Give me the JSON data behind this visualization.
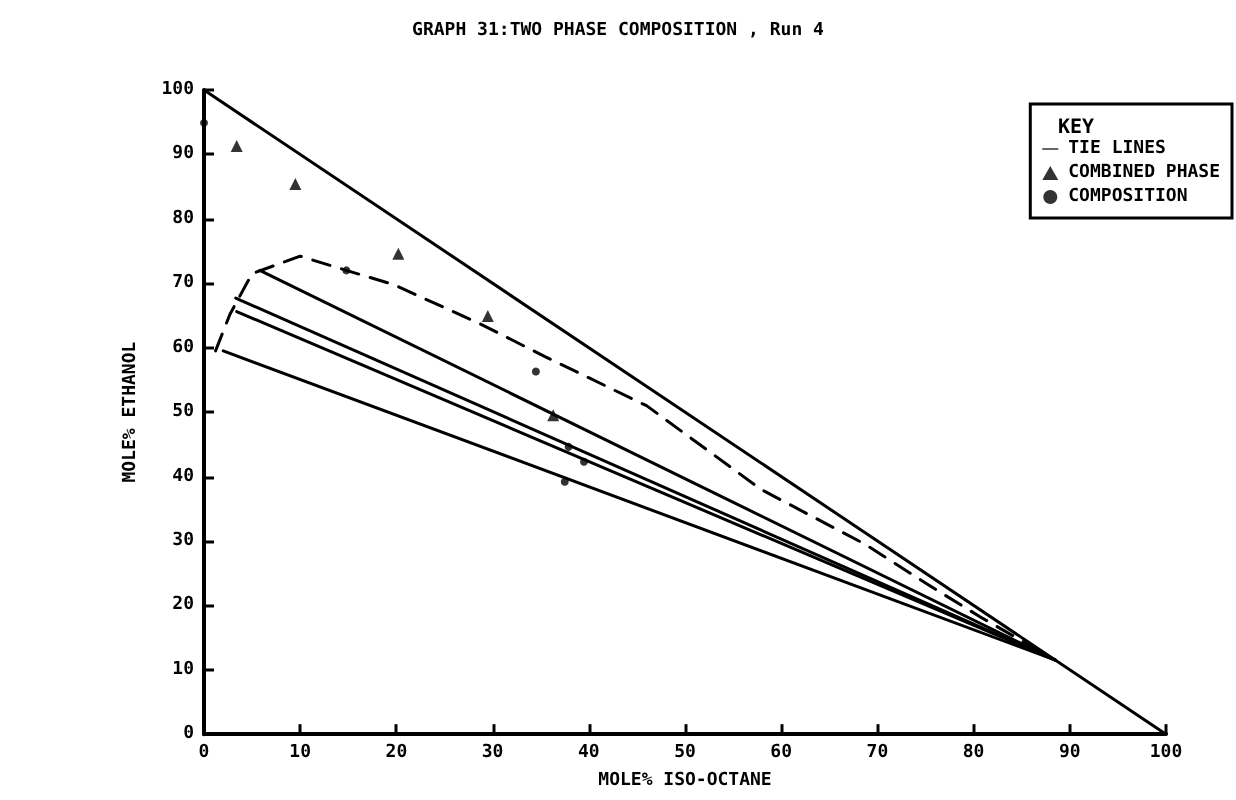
{
  "chart_data": {
    "type": "line",
    "title": "GRAPH 31:TWO PHASE COMPOSITION , Run 4",
    "xlabel": "MOLE% ISO-OCTANE",
    "ylabel": "MOLE% ETHANOL",
    "legend_title": "KEY",
    "legend": "top right",
    "grid": false,
    "xlim": [
      0,
      100
    ],
    "xticks": [
      0,
      10,
      20,
      30,
      40,
      50,
      60,
      70,
      80,
      90,
      100
    ],
    "ylim": [
      0,
      100
    ],
    "yticks": [
      0,
      10,
      20,
      30,
      40,
      50,
      60,
      70,
      80,
      90,
      100
    ],
    "series": [
      {
        "color": "#000000",
        "marker": "none",
        "line_style": "solid",
        "x": [
          0,
          100
        ],
        "values": [
          100,
          0
        ]
      },
      {
        "name": "TIE LINES",
        "color": "#000000",
        "marker": "none",
        "line_style": "solid",
        "x": [
          2,
          88.5
        ],
        "values": [
          59.5,
          11.5
        ]
      },
      {
        "color": "#000000",
        "marker": "none",
        "line_style": "solid",
        "x": [
          3.4,
          88.5
        ],
        "values": [
          65.6,
          11.5
        ]
      },
      {
        "color": "#000000",
        "marker": "none",
        "line_style": "solid",
        "x": [
          3.3,
          88.5
        ],
        "values": [
          67.7,
          11.5
        ]
      },
      {
        "color": "#000000",
        "marker": "none",
        "line_style": "solid",
        "x": [
          5.8,
          88.5
        ],
        "values": [
          72,
          11.5
        ]
      },
      {
        "color": "#000000",
        "marker": "none",
        "line_style": "dashed",
        "x": [
          1.2,
          2.7,
          5,
          10,
          14.8,
          19.7,
          28.7,
          35.6,
          46,
          57.9,
          68.7,
          75.7,
          80.7,
          88.5
        ],
        "values": [
          59.5,
          65.2,
          71.5,
          74.2,
          72,
          69.8,
          63.7,
          58.5,
          51,
          38,
          29.5,
          22.8,
          18.2,
          11.5
        ]
      },
      {
        "type": "scatter",
        "name": "COMBINED PHASE",
        "color": "#000000",
        "marker": "triangle",
        "x": [
          3.4,
          9.5,
          20.2,
          29.5,
          36.3
        ],
        "values": [
          91.3,
          85.4,
          74.6,
          64.9,
          49.5
        ]
      },
      {
        "type": "scatter",
        "name": "COMPOSITION",
        "color": "#000000",
        "marker": "circle",
        "x": [
          0,
          14.8,
          34.5,
          37.9,
          39.5,
          37.5
        ],
        "values": [
          94.9,
          72,
          56.3,
          44.6,
          42.3,
          39.2
        ]
      }
    ]
  }
}
